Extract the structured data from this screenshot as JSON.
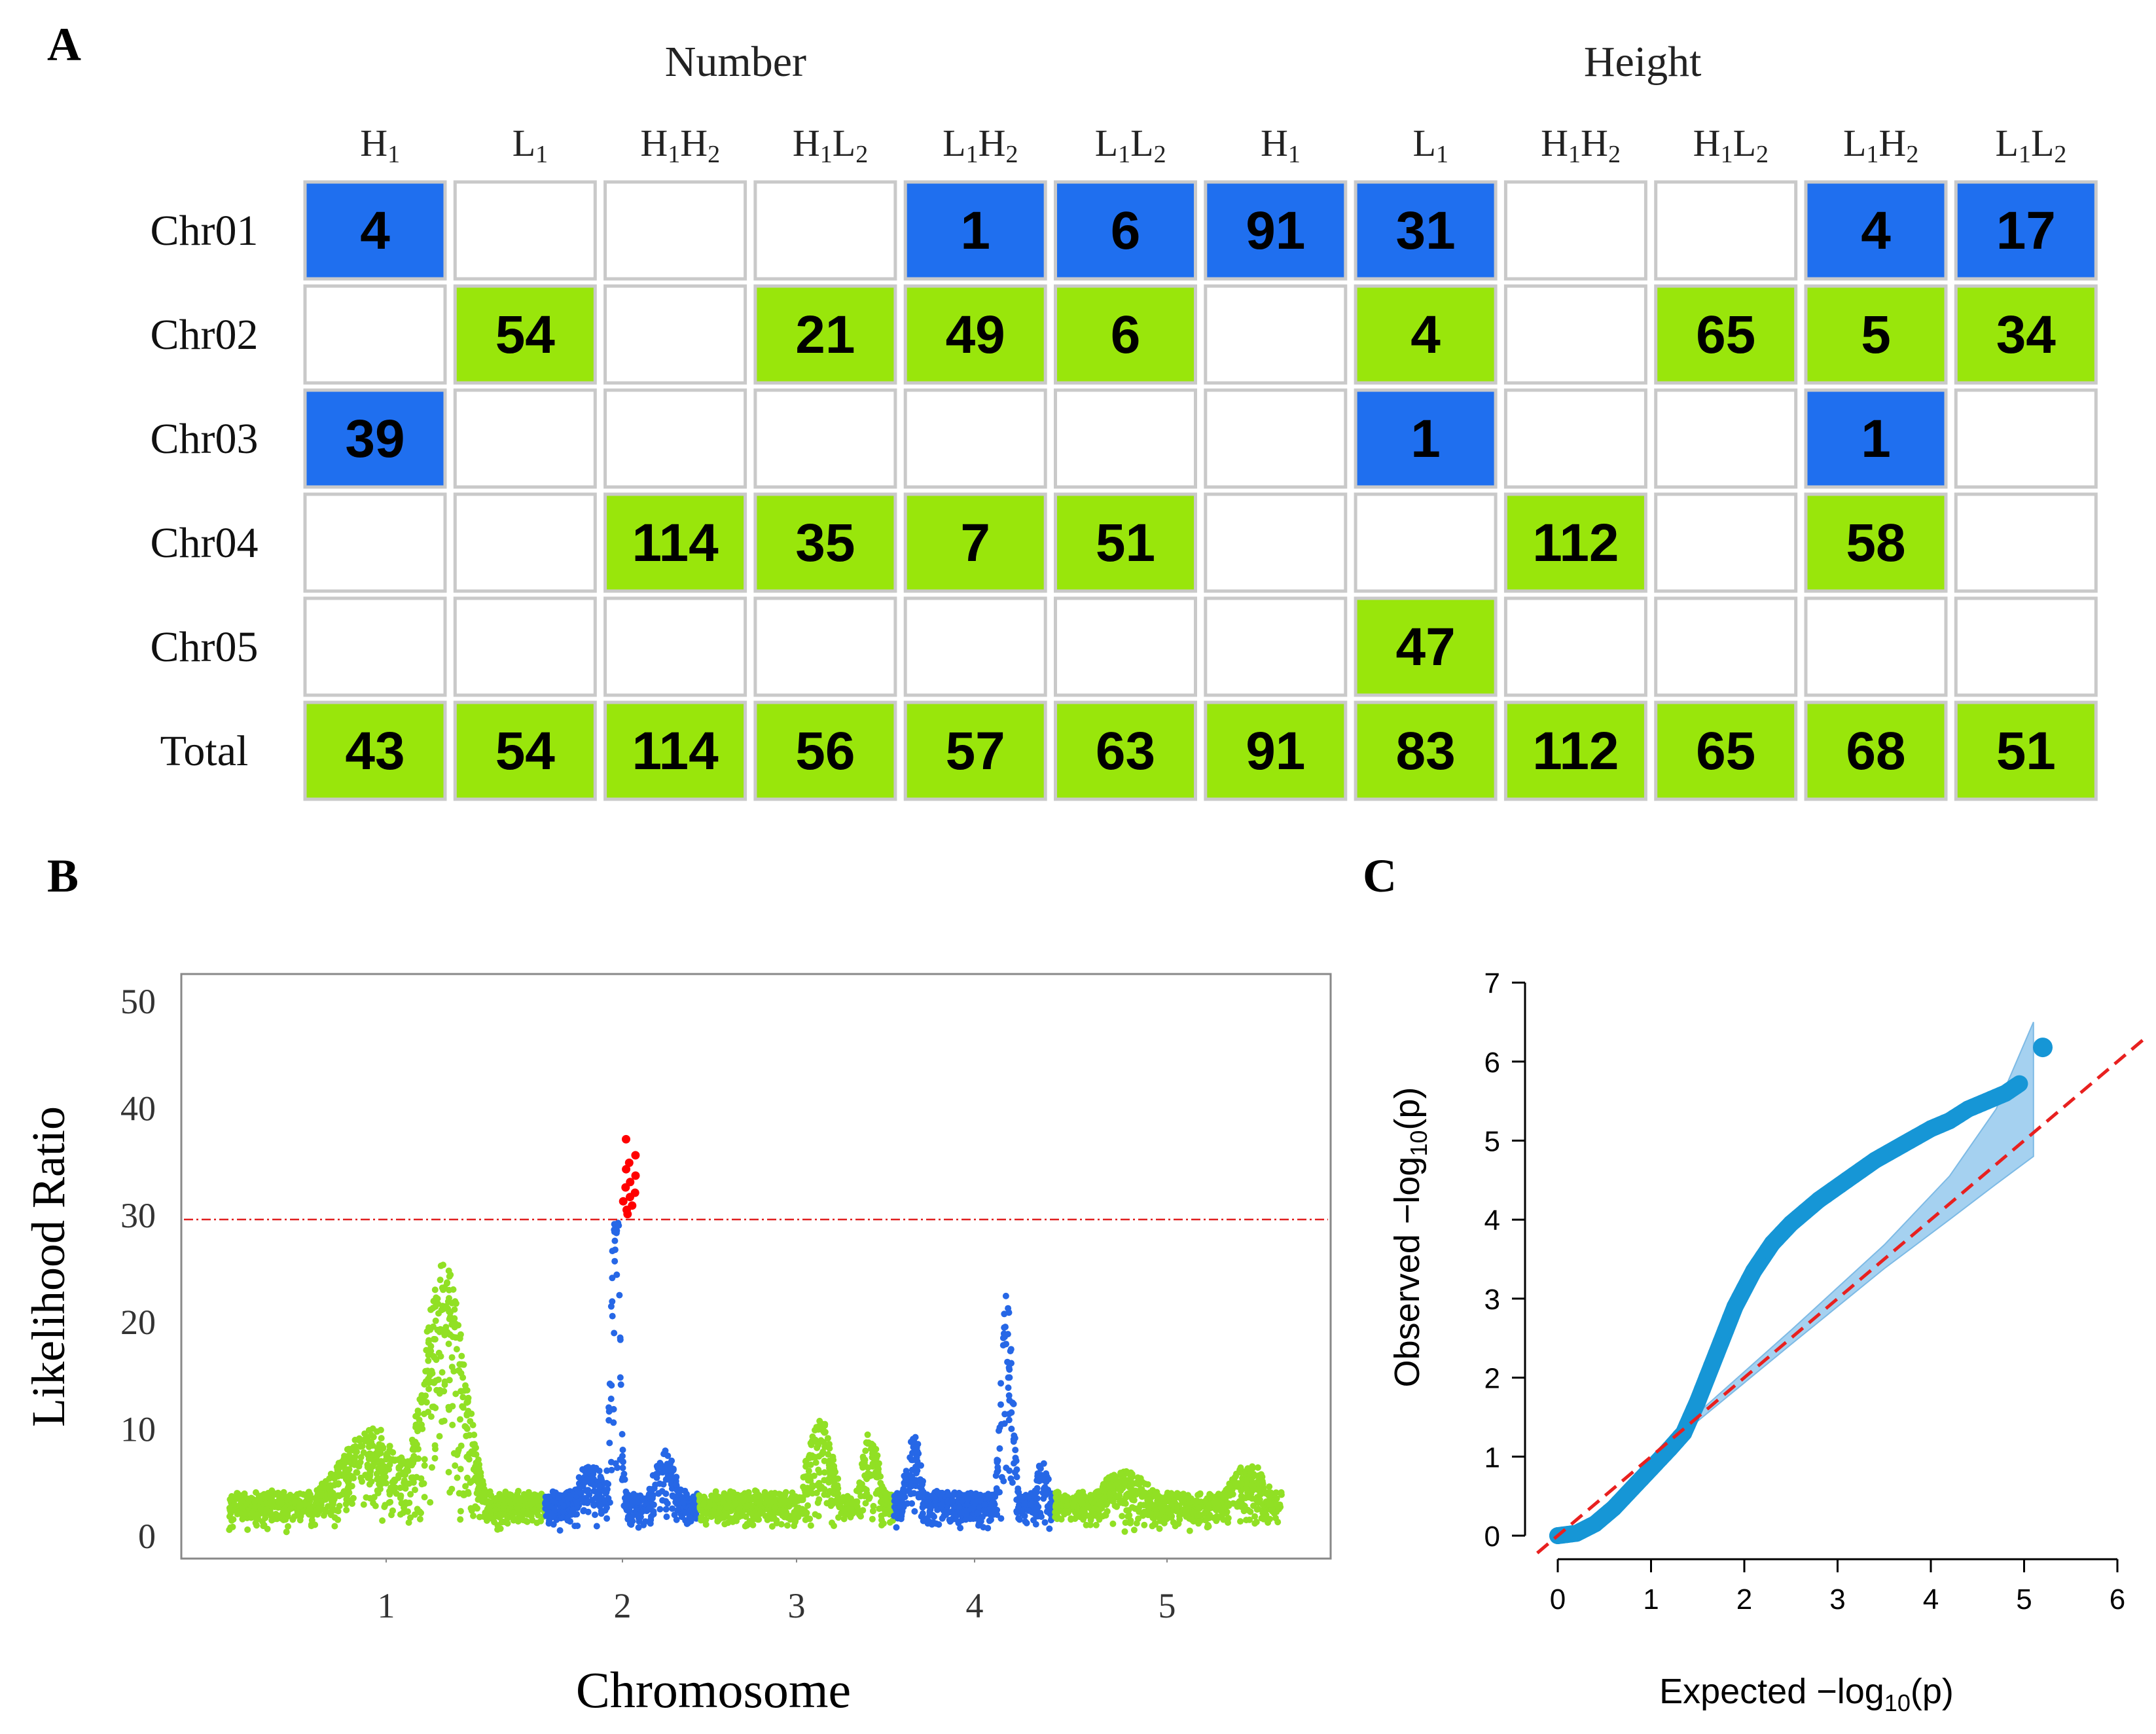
{
  "panels": {
    "a": {
      "letter": "A"
    },
    "b": {
      "letter": "B"
    },
    "c": {
      "letter": "C"
    }
  },
  "colors": {
    "blue_cell": "#1f6fef",
    "green_cell": "#99e60b",
    "cell_border": "#c9c9c9",
    "manhattan_green": "#91e024",
    "manhattan_blue": "#2667e6",
    "manhattan_red": "#ff0000",
    "qq_blue": "#1696d6",
    "qq_band": "#9ccdef",
    "threshold_red": "#e02020"
  },
  "chart_data": [
    {
      "type": "table",
      "title": "",
      "group_headers": [
        "Number",
        "Height"
      ],
      "columns": [
        {
          "main": "H",
          "sub": "1",
          "main2": "",
          "sub2": ""
        },
        {
          "main": "L",
          "sub": "1",
          "main2": "",
          "sub2": ""
        },
        {
          "main": "H",
          "sub": "1",
          "main2": "H",
          "sub2": "2"
        },
        {
          "main": "H",
          "sub": "1",
          "main2": "L",
          "sub2": "2"
        },
        {
          "main": "L",
          "sub": "1",
          "main2": "H",
          "sub2": "2"
        },
        {
          "main": "L",
          "sub": "1",
          "main2": "L",
          "sub2": "2"
        },
        {
          "main": "H",
          "sub": "1",
          "main2": "",
          "sub2": ""
        },
        {
          "main": "L",
          "sub": "1",
          "main2": "",
          "sub2": ""
        },
        {
          "main": "H",
          "sub": "1",
          "main2": "H",
          "sub2": "2"
        },
        {
          "main": "H",
          "sub": "1",
          "main2": "L",
          "sub2": "2"
        },
        {
          "main": "L",
          "sub": "1",
          "main2": "H",
          "sub2": "2"
        },
        {
          "main": "L",
          "sub": "1",
          "main2": "L",
          "sub2": "2"
        }
      ],
      "rows": [
        {
          "label": "Chr01",
          "cells": [
            {
              "v": "4",
              "c": "blue"
            },
            {
              "v": "",
              "c": ""
            },
            {
              "v": "",
              "c": ""
            },
            {
              "v": "",
              "c": ""
            },
            {
              "v": "1",
              "c": "blue"
            },
            {
              "v": "6",
              "c": "blue"
            },
            {
              "v": "91",
              "c": "blue"
            },
            {
              "v": "31",
              "c": "blue"
            },
            {
              "v": "",
              "c": ""
            },
            {
              "v": "",
              "c": ""
            },
            {
              "v": "4",
              "c": "blue"
            },
            {
              "v": "17",
              "c": "blue"
            }
          ]
        },
        {
          "label": "Chr02",
          "cells": [
            {
              "v": "",
              "c": ""
            },
            {
              "v": "54",
              "c": "green"
            },
            {
              "v": "",
              "c": ""
            },
            {
              "v": "21",
              "c": "green"
            },
            {
              "v": "49",
              "c": "green"
            },
            {
              "v": "6",
              "c": "green"
            },
            {
              "v": "",
              "c": ""
            },
            {
              "v": "4",
              "c": "green"
            },
            {
              "v": "",
              "c": ""
            },
            {
              "v": "65",
              "c": "green"
            },
            {
              "v": "5",
              "c": "green"
            },
            {
              "v": "34",
              "c": "green"
            }
          ]
        },
        {
          "label": "Chr03",
          "cells": [
            {
              "v": "39",
              "c": "blue"
            },
            {
              "v": "",
              "c": ""
            },
            {
              "v": "",
              "c": ""
            },
            {
              "v": "",
              "c": ""
            },
            {
              "v": "",
              "c": ""
            },
            {
              "v": "",
              "c": ""
            },
            {
              "v": "",
              "c": ""
            },
            {
              "v": "1",
              "c": "blue"
            },
            {
              "v": "",
              "c": ""
            },
            {
              "v": "",
              "c": ""
            },
            {
              "v": "1",
              "c": "blue"
            },
            {
              "v": "",
              "c": ""
            }
          ]
        },
        {
          "label": "Chr04",
          "cells": [
            {
              "v": "",
              "c": ""
            },
            {
              "v": "",
              "c": ""
            },
            {
              "v": "114",
              "c": "green"
            },
            {
              "v": "35",
              "c": "green"
            },
            {
              "v": "7",
              "c": "green"
            },
            {
              "v": "51",
              "c": "green"
            },
            {
              "v": "",
              "c": ""
            },
            {
              "v": "",
              "c": ""
            },
            {
              "v": "112",
              "c": "green"
            },
            {
              "v": "",
              "c": ""
            },
            {
              "v": "58",
              "c": "green"
            },
            {
              "v": "",
              "c": ""
            }
          ]
        },
        {
          "label": "Chr05",
          "cells": [
            {
              "v": "",
              "c": ""
            },
            {
              "v": "",
              "c": ""
            },
            {
              "v": "",
              "c": ""
            },
            {
              "v": "",
              "c": ""
            },
            {
              "v": "",
              "c": ""
            },
            {
              "v": "",
              "c": ""
            },
            {
              "v": "",
              "c": ""
            },
            {
              "v": "47",
              "c": "green"
            },
            {
              "v": "",
              "c": ""
            },
            {
              "v": "",
              "c": ""
            },
            {
              "v": "",
              "c": ""
            },
            {
              "v": "",
              "c": ""
            }
          ]
        },
        {
          "label": "Total",
          "cells": [
            {
              "v": "43",
              "c": "green"
            },
            {
              "v": "54",
              "c": "green"
            },
            {
              "v": "114",
              "c": "green"
            },
            {
              "v": "56",
              "c": "green"
            },
            {
              "v": "57",
              "c": "green"
            },
            {
              "v": "63",
              "c": "green"
            },
            {
              "v": "91",
              "c": "green"
            },
            {
              "v": "83",
              "c": "green"
            },
            {
              "v": "112",
              "c": "green"
            },
            {
              "v": "65",
              "c": "green"
            },
            {
              "v": "68",
              "c": "green"
            },
            {
              "v": "51",
              "c": "green"
            }
          ]
        }
      ]
    },
    {
      "type": "scatter",
      "title": "",
      "xlabel": "Chromosome",
      "ylabel": "Likelihood Ratio",
      "ylim": [
        0,
        52
      ],
      "yticks": [
        0,
        10,
        20,
        30,
        40,
        50
      ],
      "xtick_labels": [
        "1",
        "2",
        "3",
        "4",
        "5"
      ],
      "threshold": 29.5,
      "chromosomes": [
        {
          "name": "1",
          "color": "green",
          "base": 3,
          "peaks": [
            {
              "pos": 0.68,
              "height": 25,
              "width": 0.14
            },
            {
              "pos": 0.45,
              "height": 9,
              "width": 0.25
            }
          ]
        },
        {
          "name": "2",
          "color": "blue",
          "base": 3,
          "peaks": [
            {
              "pos": 0.46,
              "height": 37,
              "width": 0.06
            },
            {
              "pos": 0.3,
              "height": 6,
              "width": 0.2
            },
            {
              "pos": 0.78,
              "height": 7,
              "width": 0.18
            }
          ]
        },
        {
          "name": "3",
          "color": "green",
          "base": 3,
          "peaks": [
            {
              "pos": 0.62,
              "height": 10,
              "width": 0.15
            },
            {
              "pos": 0.88,
              "height": 9,
              "width": 0.1
            }
          ]
        },
        {
          "name": "4",
          "color": "blue",
          "base": 3,
          "peaks": [
            {
              "pos": 0.7,
              "height": 22,
              "width": 0.08
            },
            {
              "pos": 0.12,
              "height": 9,
              "width": 0.1
            },
            {
              "pos": 0.92,
              "height": 6,
              "width": 0.1
            }
          ]
        },
        {
          "name": "5",
          "color": "green",
          "base": 3,
          "peaks": [
            {
              "pos": 0.3,
              "height": 5,
              "width": 0.3
            },
            {
              "pos": 0.85,
              "height": 6,
              "width": 0.2
            }
          ]
        }
      ],
      "significant_points": [
        30.0,
        30.4,
        30.8,
        31.2,
        31.6,
        32.0,
        32.5,
        33.0,
        33.6,
        34.2,
        34.8,
        35.5,
        37.0
      ]
    },
    {
      "type": "scatter",
      "title": "",
      "xlabel": "Expected  −log",
      "xlabel_sub": "10",
      "xlabel_tail": "(p)",
      "ylabel": "Observed  −log",
      "ylabel_sub": "10",
      "ylabel_tail": "(p)",
      "xlim": [
        0,
        6
      ],
      "ylim": [
        0,
        7
      ],
      "xticks": [
        0,
        1,
        2,
        3,
        4,
        5,
        6
      ],
      "yticks": [
        0,
        1,
        2,
        3,
        4,
        5,
        6,
        7
      ],
      "observed_curve": {
        "x": [
          0.0,
          0.2,
          0.4,
          0.6,
          0.8,
          1.0,
          1.2,
          1.35,
          1.5,
          1.7,
          1.9,
          2.1,
          2.3,
          2.5,
          2.8,
          3.1,
          3.4,
          3.7,
          4.0,
          4.2,
          4.4,
          4.6,
          4.8,
          4.95
        ],
        "y": [
          0.0,
          0.03,
          0.15,
          0.35,
          0.6,
          0.85,
          1.1,
          1.3,
          1.7,
          2.3,
          2.9,
          3.35,
          3.7,
          3.95,
          4.25,
          4.5,
          4.75,
          4.95,
          5.15,
          5.25,
          5.4,
          5.5,
          5.6,
          5.72
        ]
      },
      "top_point": [
        5.2,
        6.18
      ],
      "band_upper": [
        [
          1.5,
          1.55
        ],
        [
          2.5,
          2.6
        ],
        [
          3.5,
          3.68
        ],
        [
          4.2,
          4.55
        ],
        [
          4.7,
          5.4
        ],
        [
          5.1,
          6.5
        ]
      ],
      "band_lower": [
        [
          1.5,
          1.45
        ],
        [
          2.5,
          2.42
        ],
        [
          3.5,
          3.38
        ],
        [
          4.2,
          4.0
        ],
        [
          4.7,
          4.45
        ],
        [
          5.1,
          4.8
        ]
      ]
    }
  ]
}
